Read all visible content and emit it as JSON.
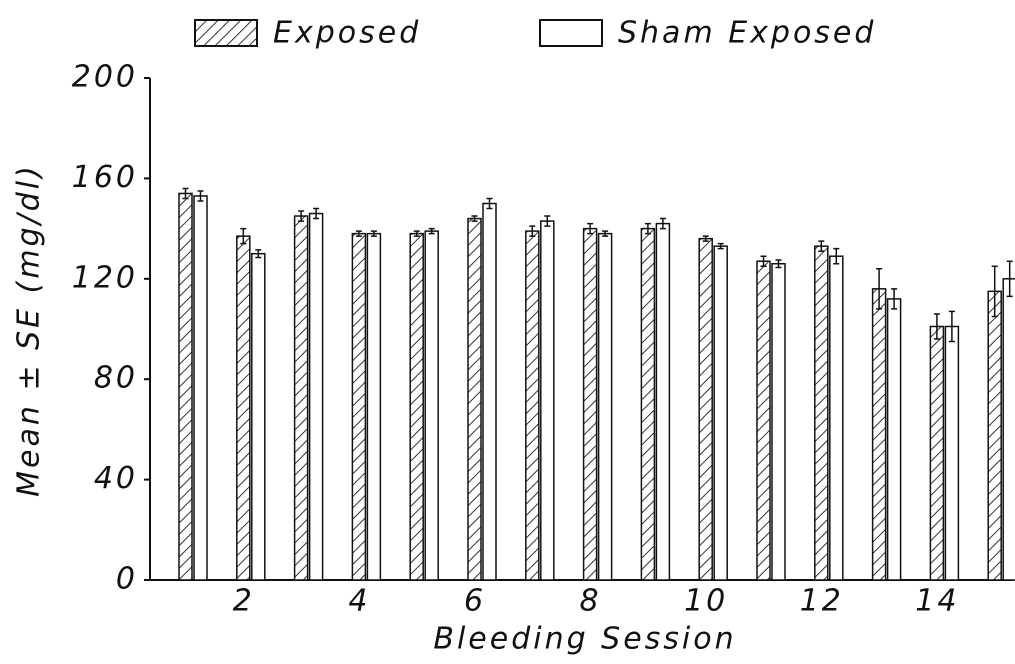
{
  "chart_data": {
    "type": "bar",
    "xlabel": "Bleeding Session",
    "ylabel": "Mean ± SE (mg/dl)",
    "categories": [
      null,
      "2",
      null,
      "4",
      null,
      "6",
      null,
      "8",
      null,
      "10",
      null,
      "12",
      null,
      "14",
      null
    ],
    "series": [
      {
        "name": "Exposed",
        "color": "hatched",
        "values": [
          154,
          137,
          145,
          138,
          138,
          144,
          139,
          140,
          140,
          136,
          127,
          133,
          116,
          101,
          115
        ],
        "errors": [
          2,
          3,
          2,
          1,
          1,
          1,
          2,
          2,
          2,
          1,
          2,
          2,
          8,
          5,
          10
        ]
      },
      {
        "name": "Sham Exposed",
        "color": "#ffffff",
        "values": [
          153,
          130,
          146,
          138,
          139,
          150,
          143,
          138,
          142,
          133,
          126,
          129,
          112,
          101,
          120
        ],
        "errors": [
          2,
          1.5,
          2,
          1,
          1,
          2,
          2,
          1,
          2,
          1,
          1.5,
          3,
          4,
          6,
          7
        ]
      }
    ],
    "ylim": [
      0,
      200
    ],
    "yticks": [
      0,
      40,
      80,
      120,
      160,
      200
    ],
    "legend": "top"
  }
}
